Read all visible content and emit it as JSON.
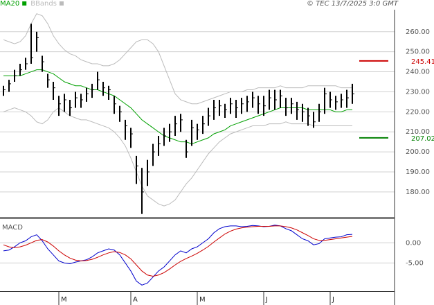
{
  "chart_data": [
    {
      "type": "hlc",
      "credit": "© TEC 13/7/2025 3:0 GMT",
      "categories": [
        null,
        null,
        null,
        null,
        null,
        null,
        null,
        null,
        null,
        null,
        "M",
        null,
        null,
        null,
        null,
        null,
        null,
        null,
        null,
        null,
        null,
        null,
        null,
        "A",
        null,
        null,
        null,
        null,
        null,
        null,
        null,
        null,
        null,
        null,
        null,
        "M",
        null,
        null,
        null,
        null,
        null,
        null,
        null,
        null,
        null,
        null,
        null,
        "J",
        null,
        null,
        null,
        null,
        null,
        null,
        null,
        null,
        null,
        null,
        null,
        "J",
        null,
        null,
        null,
        null
      ],
      "high": [
        233,
        236,
        241,
        244,
        247,
        264,
        260,
        248,
        239,
        235,
        228,
        229,
        226,
        230,
        229,
        232,
        234,
        240,
        235,
        233,
        228,
        223,
        216,
        212,
        198,
        192,
        196,
        204,
        208,
        212,
        214,
        218,
        219,
        206,
        216,
        214,
        218,
        222,
        226,
        226,
        224,
        227,
        226,
        227,
        228,
        230,
        228,
        228,
        231,
        231,
        231,
        227,
        227,
        225,
        224,
        222,
        220,
        224,
        232,
        230,
        228,
        229,
        231,
        234
      ],
      "low": [
        228,
        230,
        235,
        238,
        241,
        244,
        250,
        240,
        232,
        226,
        218,
        220,
        218,
        222,
        222,
        225,
        227,
        231,
        228,
        226,
        219,
        215,
        206,
        202,
        184,
        169,
        183,
        193,
        198,
        203,
        205,
        208,
        210,
        197,
        203,
        206,
        209,
        213,
        216,
        218,
        217,
        219,
        217,
        219,
        220,
        222,
        219,
        218,
        221,
        221,
        222,
        218,
        219,
        216,
        215,
        213,
        212,
        215,
        219,
        222,
        221,
        222,
        222,
        224
      ],
      "close": [
        231,
        234,
        238,
        241,
        244,
        247,
        257,
        245,
        236,
        232,
        224,
        226,
        222,
        227,
        226,
        229,
        231,
        236,
        232,
        231,
        224,
        220,
        213,
        209,
        193,
        180,
        190,
        200,
        204,
        208,
        210,
        214,
        216,
        200,
        212,
        211,
        214,
        218,
        222,
        223,
        221,
        224,
        222,
        224,
        225,
        227,
        224,
        223,
        227,
        226,
        228,
        222,
        224,
        221,
        220,
        218,
        215,
        220,
        229,
        226,
        225,
        226,
        227,
        229
      ],
      "bar_color": "#000000",
      "series": [
        {
          "name": "MA20",
          "color": "#00a000",
          "values": [
            238,
            238,
            238,
            238,
            239,
            240,
            241,
            241,
            240,
            239,
            237,
            235,
            234,
            233,
            233,
            232,
            231,
            231,
            230,
            229,
            228,
            226,
            224,
            222,
            219,
            216,
            214,
            212,
            210,
            208,
            207,
            206,
            205,
            205,
            204,
            205,
            206,
            207,
            209,
            210,
            211,
            213,
            214,
            215,
            216,
            217,
            218,
            219,
            220,
            221,
            222,
            222,
            222,
            222,
            222,
            221,
            221,
            221,
            221,
            221,
            220,
            220,
            221,
            221
          ]
        },
        {
          "name": "BBands",
          "color": "#bbbbbb",
          "values": [
            256,
            255,
            254,
            255,
            258,
            264,
            269,
            268,
            264,
            258,
            254,
            251,
            249,
            248,
            246,
            245,
            244,
            244,
            243,
            243,
            244,
            246,
            249,
            252,
            255,
            256,
            256,
            254,
            250,
            243,
            236,
            229,
            226,
            225,
            224,
            224,
            225,
            226,
            227,
            228,
            229,
            230,
            230,
            230,
            231,
            231,
            232,
            232,
            232,
            232,
            233,
            232,
            232,
            232,
            232,
            233,
            233,
            233,
            233,
            233,
            233,
            232,
            232,
            232
          ]
        },
        {
          "color": "#bbbbbb",
          "values": [
            220,
            221,
            222,
            221,
            220,
            218,
            215,
            214,
            216,
            220,
            222,
            220,
            218,
            217,
            216,
            216,
            215,
            214,
            213,
            212,
            210,
            207,
            203,
            197,
            190,
            183,
            178,
            176,
            174,
            173,
            174,
            176,
            180,
            184,
            187,
            191,
            195,
            199,
            202,
            205,
            207,
            209,
            210,
            211,
            212,
            213,
            213,
            213,
            214,
            214,
            214,
            215,
            214,
            214,
            214,
            214,
            213,
            213,
            213,
            213,
            213,
            213,
            213,
            213
          ]
        }
      ],
      "levels": [
        {
          "value": 245.41,
          "label": "245.41",
          "color": "#cc0000"
        },
        {
          "value": 207.02,
          "label": "207.02",
          "color": "#008000"
        }
      ],
      "ylim": [
        167.5,
        271
      ],
      "yticks": [
        {
          "value": 180,
          "label": "180.00"
        },
        {
          "value": 190,
          "label": "190.00"
        },
        {
          "value": 200,
          "label": "200.00"
        },
        {
          "value": 210,
          "label": "210.00"
        },
        {
          "value": 220,
          "label": "220.00"
        },
        {
          "value": 230,
          "label": "230.00"
        },
        {
          "value": 240,
          "label": "240.00"
        },
        {
          "value": 250,
          "label": "250.00"
        },
        {
          "value": 260,
          "label": "260.00"
        }
      ],
      "grid": true
    },
    {
      "type": "line",
      "title": "MACD",
      "series": [
        {
          "color": "#0000cc",
          "values": [
            -2,
            -1.8,
            -1,
            0,
            0.5,
            1.5,
            2,
            0.5,
            -1.5,
            -3,
            -4.5,
            -5,
            -5.2,
            -4.8,
            -4.5,
            -4.2,
            -3.5,
            -2.5,
            -2,
            -1.5,
            -1.8,
            -3,
            -5,
            -7,
            -9.5,
            -10.5,
            -10,
            -8.5,
            -7,
            -6,
            -4.5,
            -3,
            -2,
            -2.5,
            -1.5,
            -1,
            0,
            1,
            2.5,
            3.5,
            4,
            4.2,
            4.2,
            4,
            4.1,
            4.3,
            4.2,
            4,
            4.1,
            4.4,
            4.2,
            3.5,
            3,
            2,
            1,
            0.5,
            -0.5,
            -0.2,
            1,
            1.2,
            1.4,
            1.5,
            2,
            2.1
          ]
        },
        {
          "color": "#cc0000",
          "values": [
            -0.5,
            -1,
            -1.2,
            -1,
            -0.6,
            0,
            0.6,
            0.8,
            0.2,
            -0.8,
            -2,
            -3,
            -3.8,
            -4.3,
            -4.5,
            -4.4,
            -4.1,
            -3.6,
            -3,
            -2.5,
            -2.2,
            -2.4,
            -3,
            -4,
            -5.5,
            -7,
            -8,
            -8.3,
            -8,
            -7.4,
            -6.5,
            -5.5,
            -4.6,
            -3.9,
            -3.3,
            -2.6,
            -1.8,
            -0.9,
            0.2,
            1.2,
            2.2,
            2.9,
            3.4,
            3.7,
            3.9,
            4,
            4.1,
            4.1,
            4.1,
            4.2,
            4.2,
            4,
            3.7,
            3.2,
            2.5,
            1.8,
            1,
            0.6,
            0.6,
            0.8,
            1,
            1.2,
            1.4,
            1.6
          ]
        }
      ],
      "ylim": [
        -12,
        5.9
      ],
      "yticks": [
        {
          "value": 0,
          "label": "0.00"
        },
        {
          "value": -5,
          "label": "-5.00"
        }
      ],
      "grid": true
    }
  ]
}
